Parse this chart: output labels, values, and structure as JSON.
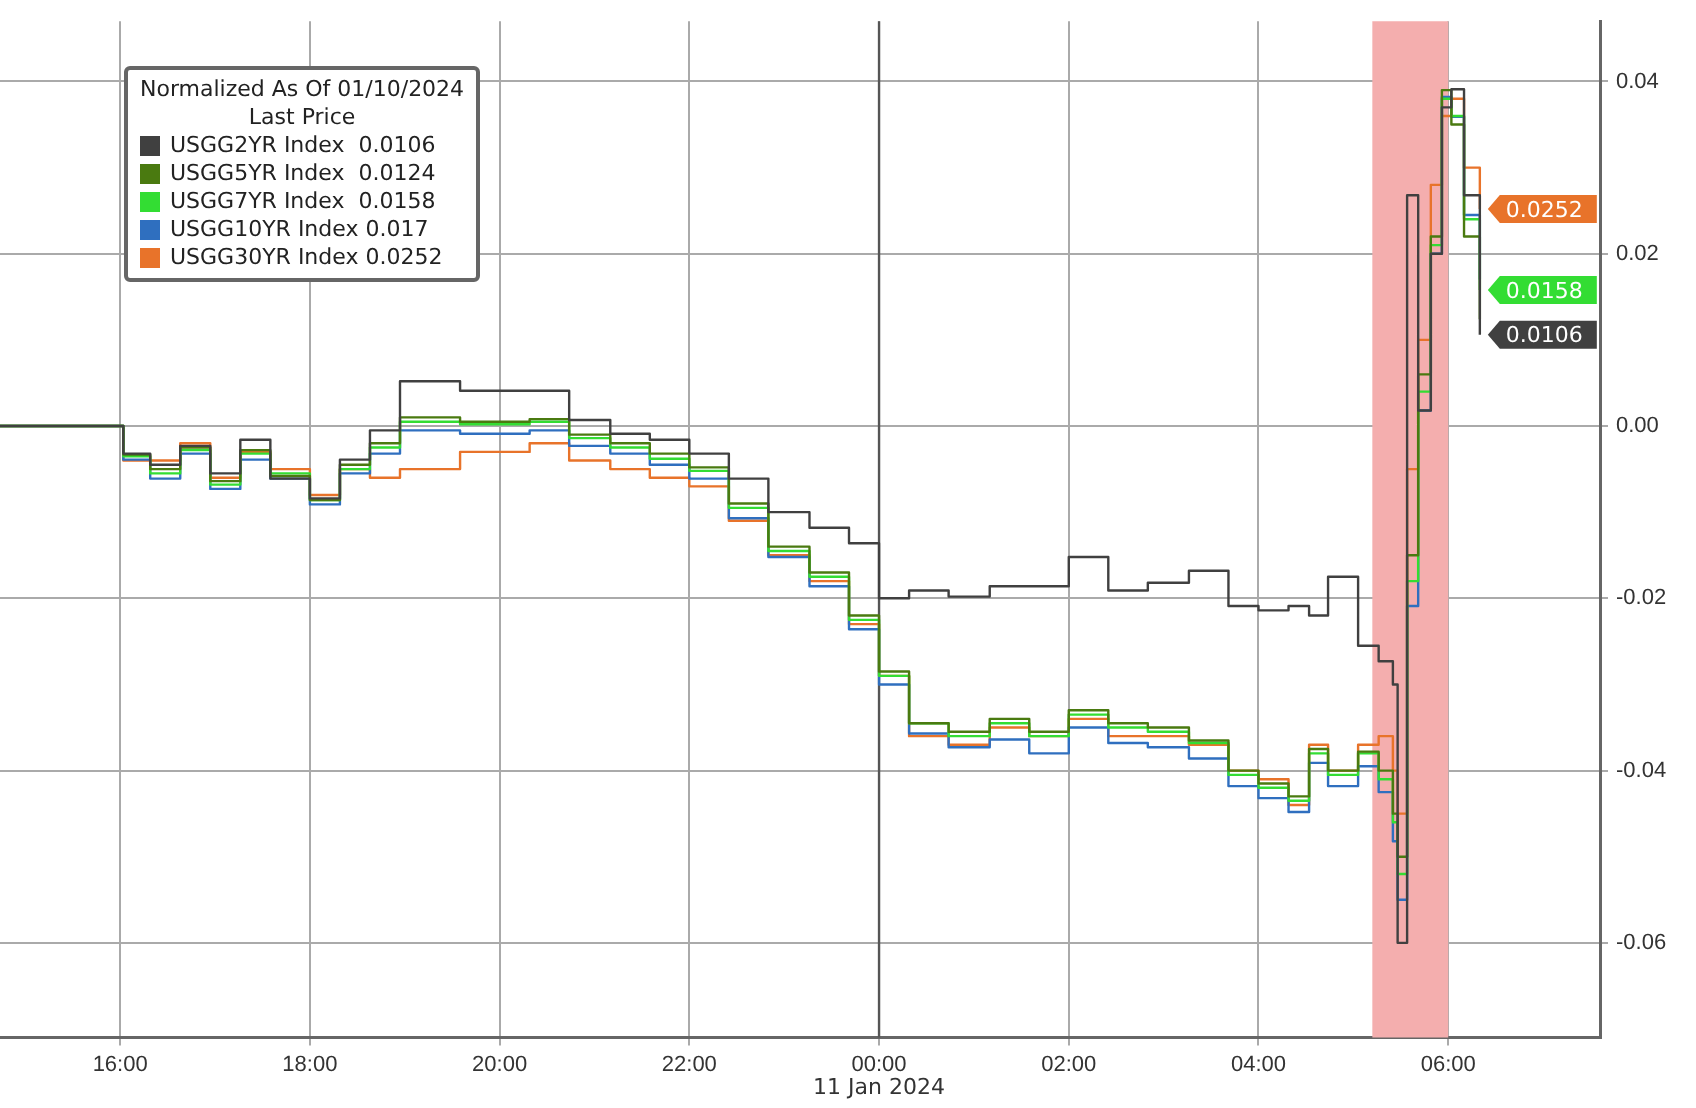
{
  "chart_data": {
    "type": "step",
    "x": [
      "2024-01-10T14:44",
      "2024-01-10T16:02",
      "2024-01-10T16:19",
      "2024-01-10T16:38",
      "2024-01-10T16:57",
      "2024-01-10T17:16",
      "2024-01-10T17:35",
      "2024-01-10T18:00",
      "2024-01-10T18:19",
      "2024-01-10T18:38",
      "2024-01-10T18:57",
      "2024-01-10T19:35",
      "2024-01-10T20:19",
      "2024-01-10T20:44",
      "2024-01-10T21:10",
      "2024-01-10T21:35",
      "2024-01-10T22:00",
      "2024-01-10T22:25",
      "2024-01-10T22:50",
      "2024-01-10T23:16",
      "2024-01-10T23:41",
      "2024-01-11T00:00",
      "2024-01-11T00:19",
      "2024-01-11T00:44",
      "2024-01-11T01:10",
      "2024-01-11T01:35",
      "2024-01-11T02:00",
      "2024-01-11T02:25",
      "2024-01-11T02:50",
      "2024-01-11T03:16",
      "2024-01-11T03:41",
      "2024-01-11T04:00",
      "2024-01-11T04:19",
      "2024-01-11T04:32",
      "2024-01-11T04:44",
      "2024-01-11T05:03",
      "2024-01-11T05:16",
      "2024-01-11T05:25",
      "2024-01-11T05:28",
      "2024-01-11T05:34",
      "2024-01-11T05:41",
      "2024-01-11T05:49",
      "2024-01-11T05:56",
      "2024-01-11T06:02",
      "2024-01-11T06:10",
      "2024-01-11T06:20"
    ],
    "legend_title": "Normalized As Of 01/10/2024\nLast Price",
    "series": [
      {
        "name": "USGG2YR Index  0.0106",
        "color": "#404040",
        "values": [
          0,
          -0.0032,
          -0.0045,
          -0.0023,
          -0.0055,
          -0.0016,
          -0.0061,
          -0.0084,
          -0.0039,
          -0.0005,
          0.0052,
          0.0041,
          0.0041,
          0.0007,
          -0.0009,
          -0.0016,
          -0.0032,
          -0.0061,
          -0.01,
          -0.0118,
          -0.0136,
          -0.02,
          -0.0191,
          -0.0198,
          -0.0186,
          -0.0186,
          -0.0152,
          -0.0191,
          -0.0182,
          -0.0168,
          -0.0209,
          -0.0214,
          -0.0209,
          -0.022,
          -0.0175,
          -0.0255,
          -0.0273,
          -0.03,
          -0.06,
          0.0268,
          0.0018,
          0.02,
          0.037,
          0.0391,
          0.0268,
          0.0106
        ],
        "value_labels": [
          null,
          null,
          null,
          null,
          null,
          null,
          null,
          null,
          null,
          null,
          null,
          null,
          null,
          null,
          null,
          null,
          null,
          null,
          null,
          null,
          null,
          null,
          null,
          null,
          null,
          null,
          null,
          null,
          null,
          null,
          null,
          null,
          null,
          null,
          null,
          null,
          null,
          null,
          null,
          null,
          null,
          null,
          null,
          null,
          null,
          "0.0106"
        ]
      },
      {
        "name": "USGG5YR Index  0.0124",
        "color": "#4a7a10",
        "values": [
          0,
          -0.0033,
          -0.005,
          -0.0025,
          -0.0064,
          -0.0028,
          -0.0058,
          -0.0086,
          -0.0045,
          -0.002,
          0.001,
          0.0005,
          0.0008,
          -0.001,
          -0.002,
          -0.0032,
          -0.0048,
          -0.009,
          -0.014,
          -0.017,
          -0.022,
          -0.0285,
          -0.0345,
          -0.0355,
          -0.034,
          -0.0355,
          -0.033,
          -0.0345,
          -0.035,
          -0.0365,
          -0.04,
          -0.0415,
          -0.043,
          -0.0375,
          -0.04,
          -0.0378,
          -0.04,
          -0.045,
          -0.05,
          -0.015,
          0.006,
          0.022,
          0.039,
          0.035,
          0.022,
          0.0124
        ]
      },
      {
        "name": "USGG7YR Index  0.0158",
        "color": "#33dd33",
        "values": [
          0,
          -0.0035,
          -0.0055,
          -0.0028,
          -0.0068,
          -0.0032,
          -0.0055,
          -0.0086,
          -0.005,
          -0.0025,
          0.0005,
          0.0002,
          0.0005,
          -0.0014,
          -0.0025,
          -0.0038,
          -0.0052,
          -0.0095,
          -0.0145,
          -0.0175,
          -0.0225,
          -0.029,
          -0.0345,
          -0.036,
          -0.0345,
          -0.036,
          -0.0335,
          -0.035,
          -0.0355,
          -0.0368,
          -0.0405,
          -0.042,
          -0.0435,
          -0.038,
          -0.0405,
          -0.038,
          -0.041,
          -0.046,
          -0.052,
          -0.018,
          0.004,
          0.021,
          0.038,
          0.036,
          0.024,
          0.0158
        ],
        "value_labels": [
          null,
          null,
          null,
          null,
          null,
          null,
          null,
          null,
          null,
          null,
          null,
          null,
          null,
          null,
          null,
          null,
          null,
          null,
          null,
          null,
          null,
          null,
          null,
          null,
          null,
          null,
          null,
          null,
          null,
          null,
          null,
          null,
          null,
          null,
          null,
          null,
          null,
          null,
          null,
          null,
          null,
          null,
          null,
          null,
          null,
          "0.0158"
        ]
      },
      {
        "name": "USGG10YR Index 0.017",
        "color": "#2f6fbf",
        "values": [
          0,
          -0.0039,
          -0.0061,
          -0.0032,
          -0.0073,
          -0.0039,
          -0.0061,
          -0.0091,
          -0.0055,
          -0.0032,
          -0.0005,
          -0.0009,
          -0.0005,
          -0.0023,
          -0.0032,
          -0.0045,
          -0.0061,
          -0.0107,
          -0.0152,
          -0.0186,
          -0.0236,
          -0.03,
          -0.0357,
          -0.0373,
          -0.0364,
          -0.038,
          -0.035,
          -0.0368,
          -0.0373,
          -0.0386,
          -0.0418,
          -0.0432,
          -0.0448,
          -0.0391,
          -0.0418,
          -0.0395,
          -0.0425,
          -0.0482,
          -0.055,
          -0.0209,
          0.0018,
          0.02,
          0.0382,
          0.0359,
          0.0245,
          0.017
        ]
      },
      {
        "name": "USGG30YR Index 0.0252",
        "color": "#e8732a",
        "values": [
          0,
          -0.004,
          -0.004,
          -0.002,
          -0.006,
          -0.003,
          -0.005,
          -0.008,
          -0.005,
          -0.006,
          -0.005,
          -0.003,
          -0.002,
          -0.004,
          -0.005,
          -0.006,
          -0.007,
          -0.011,
          -0.015,
          -0.018,
          -0.023,
          -0.029,
          -0.036,
          -0.037,
          -0.035,
          -0.036,
          -0.034,
          -0.036,
          -0.036,
          -0.037,
          -0.04,
          -0.041,
          -0.044,
          -0.037,
          -0.04,
          -0.037,
          -0.036,
          -0.04,
          -0.045,
          -0.005,
          0.01,
          0.028,
          0.036,
          0.038,
          0.03,
          0.0252
        ],
        "value_labels": [
          null,
          null,
          null,
          null,
          null,
          null,
          null,
          null,
          null,
          null,
          null,
          null,
          null,
          null,
          null,
          null,
          null,
          null,
          null,
          null,
          null,
          null,
          null,
          null,
          null,
          null,
          null,
          null,
          null,
          null,
          null,
          null,
          null,
          null,
          null,
          null,
          null,
          null,
          null,
          null,
          null,
          null,
          null,
          null,
          null,
          "0.0252"
        ]
      }
    ],
    "xlim": [
      "2024-01-10T14:44",
      "2024-01-11T07:36"
    ],
    "xticks": [
      {
        "value": "2024-01-10T16:00",
        "label": "16:00"
      },
      {
        "value": "2024-01-10T18:00",
        "label": "18:00"
      },
      {
        "value": "2024-01-10T20:00",
        "label": "20:00"
      },
      {
        "value": "2024-01-10T22:00",
        "label": "22:00"
      },
      {
        "value": "2024-01-11T00:00",
        "label": "00:00"
      },
      {
        "value": "2024-01-11T02:00",
        "label": "02:00"
      },
      {
        "value": "2024-01-11T04:00",
        "label": "04:00"
      },
      {
        "value": "2024-01-11T06:00",
        "label": "06:00"
      }
    ],
    "ylim": [
      -0.071,
      0.047
    ],
    "yticks": [
      -0.06,
      -0.04,
      -0.02,
      {
        "value": 0,
        "label": "0.00"
      },
      0.02,
      0.04
    ],
    "ref_lines": [
      {
        "axis": "x",
        "value": "2024-01-11T00:00",
        "label": "11 Jan 2024",
        "color": "#555555"
      }
    ],
    "bands": [
      {
        "axis": "x",
        "from": "2024-01-11T05:12",
        "to": "2024-01-11T06:00",
        "color": "#f4aeae"
      }
    ],
    "grid": true,
    "legend": "top left",
    "marker": "none",
    "line_style": "solid"
  }
}
